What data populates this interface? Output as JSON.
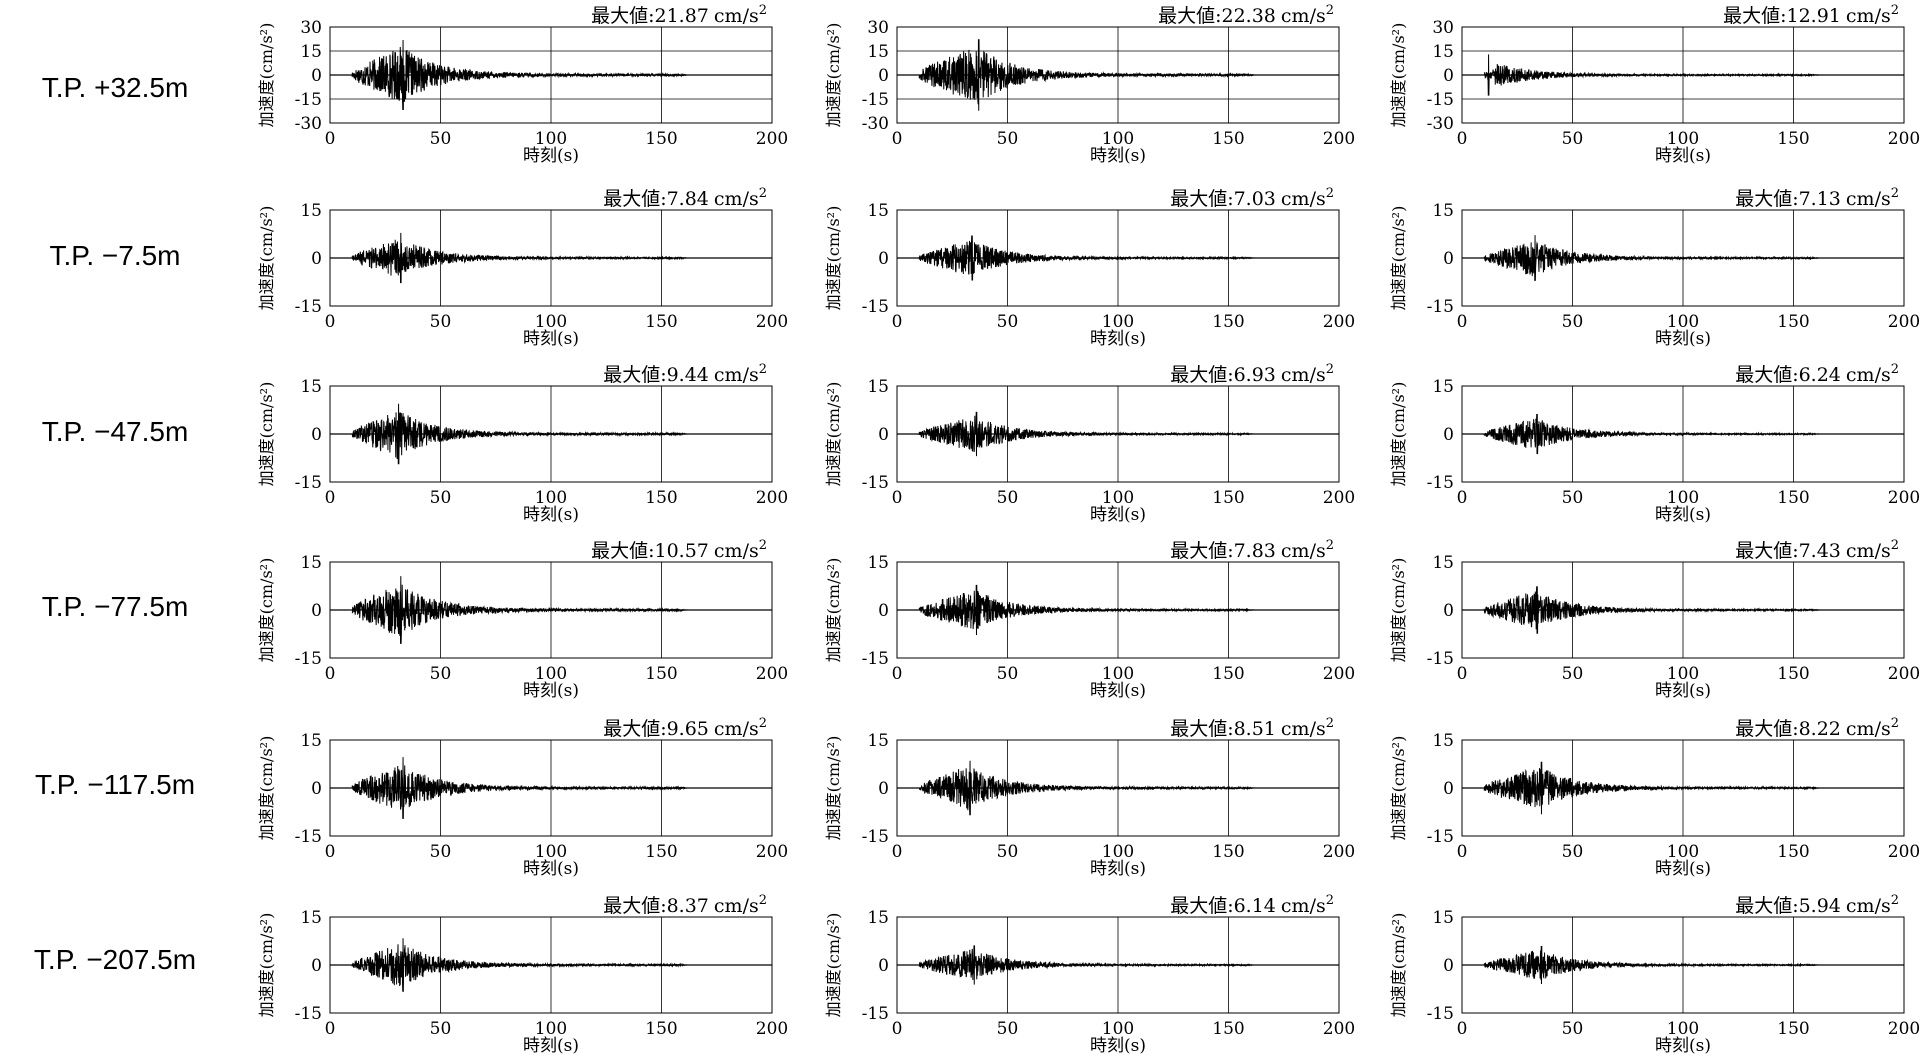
{
  "common": {
    "xlabel": "時刻(s)",
    "ylabel": "加速度(cm/s²)",
    "peak_prefix": "最大値:",
    "peak_unit": "cm/s",
    "peak_exp": "2",
    "x_ticks": [
      "0",
      "50",
      "100",
      "150",
      "200"
    ]
  },
  "rows": [
    {
      "label": "T.P. +32.5m"
    },
    {
      "label": "T.P. −7.5m"
    },
    {
      "label": "T.P. −47.5m"
    },
    {
      "label": "T.P. −77.5m"
    },
    {
      "label": "T.P. −117.5m"
    },
    {
      "label": "T.P. −207.5m"
    }
  ],
  "chart_data": [
    {
      "type": "line",
      "row": 0,
      "col": 0,
      "xlim": [
        0,
        200
      ],
      "ylim": [
        -30,
        30
      ],
      "yticks": [
        "30",
        "15",
        "0",
        "-15",
        "-30"
      ],
      "grid": "major x and y",
      "peak": "21.87",
      "signal": {
        "start": 10,
        "end": 162,
        "peak_time": 33
      }
    },
    {
      "type": "line",
      "row": 0,
      "col": 1,
      "xlim": [
        0,
        200
      ],
      "ylim": [
        -30,
        30
      ],
      "yticks": [
        "30",
        "15",
        "0",
        "-15",
        "-30"
      ],
      "grid": "major x and y",
      "peak": "22.38",
      "signal": {
        "start": 10,
        "end": 162,
        "peak_time": 37
      }
    },
    {
      "type": "line",
      "row": 0,
      "col": 2,
      "xlim": [
        0,
        200
      ],
      "ylim": [
        -30,
        30
      ],
      "yticks": [
        "30",
        "15",
        "0",
        "-15",
        "-30"
      ],
      "grid": "major x and y",
      "peak": "12.91",
      "signal": {
        "start": 10,
        "end": 162,
        "peak_time": 12
      }
    },
    {
      "type": "line",
      "row": 1,
      "col": 0,
      "xlim": [
        0,
        200
      ],
      "ylim": [
        -15,
        15
      ],
      "yticks": [
        "15",
        "0",
        "-15"
      ],
      "grid": "major x and zero line",
      "peak": "7.84",
      "signal": {
        "start": 10,
        "end": 162,
        "peak_time": 32
      }
    },
    {
      "type": "line",
      "row": 1,
      "col": 1,
      "xlim": [
        0,
        200
      ],
      "ylim": [
        -15,
        15
      ],
      "yticks": [
        "15",
        "0",
        "-15"
      ],
      "grid": "major x and zero line",
      "peak": "7.03",
      "signal": {
        "start": 10,
        "end": 162,
        "peak_time": 34
      }
    },
    {
      "type": "line",
      "row": 1,
      "col": 2,
      "xlim": [
        0,
        200
      ],
      "ylim": [
        -15,
        15
      ],
      "yticks": [
        "15",
        "0",
        "-15"
      ],
      "grid": "major x and zero line",
      "peak": "7.13",
      "signal": {
        "start": 10,
        "end": 162,
        "peak_time": 33
      }
    },
    {
      "type": "line",
      "row": 2,
      "col": 0,
      "xlim": [
        0,
        200
      ],
      "ylim": [
        -15,
        15
      ],
      "yticks": [
        "15",
        "0",
        "-15"
      ],
      "grid": "major x and zero line",
      "peak": "9.44",
      "signal": {
        "start": 10,
        "end": 162,
        "peak_time": 31
      }
    },
    {
      "type": "line",
      "row": 2,
      "col": 1,
      "xlim": [
        0,
        200
      ],
      "ylim": [
        -15,
        15
      ],
      "yticks": [
        "15",
        "0",
        "-15"
      ],
      "grid": "major x and zero line",
      "peak": "6.93",
      "signal": {
        "start": 10,
        "end": 162,
        "peak_time": 36
      }
    },
    {
      "type": "line",
      "row": 2,
      "col": 2,
      "xlim": [
        0,
        200
      ],
      "ylim": [
        -15,
        15
      ],
      "yticks": [
        "15",
        "0",
        "-15"
      ],
      "grid": "major x and zero line",
      "peak": "6.24",
      "signal": {
        "start": 10,
        "end": 162,
        "peak_time": 34
      }
    },
    {
      "type": "line",
      "row": 3,
      "col": 0,
      "xlim": [
        0,
        200
      ],
      "ylim": [
        -15,
        15
      ],
      "yticks": [
        "15",
        "0",
        "-15"
      ],
      "grid": "major x and zero line",
      "peak": "10.57",
      "signal": {
        "start": 10,
        "end": 162,
        "peak_time": 32
      }
    },
    {
      "type": "line",
      "row": 3,
      "col": 1,
      "xlim": [
        0,
        200
      ],
      "ylim": [
        -15,
        15
      ],
      "yticks": [
        "15",
        "0",
        "-15"
      ],
      "grid": "major x and zero line",
      "peak": "7.83",
      "signal": {
        "start": 10,
        "end": 162,
        "peak_time": 36
      }
    },
    {
      "type": "line",
      "row": 3,
      "col": 2,
      "xlim": [
        0,
        200
      ],
      "ylim": [
        -15,
        15
      ],
      "yticks": [
        "15",
        "0",
        "-15"
      ],
      "grid": "major x and zero line",
      "peak": "7.43",
      "signal": {
        "start": 10,
        "end": 162,
        "peak_time": 34
      }
    },
    {
      "type": "line",
      "row": 4,
      "col": 0,
      "xlim": [
        0,
        200
      ],
      "ylim": [
        -15,
        15
      ],
      "yticks": [
        "15",
        "0",
        "-15"
      ],
      "grid": "major x and zero line",
      "peak": "9.65",
      "signal": {
        "start": 10,
        "end": 162,
        "peak_time": 33
      }
    },
    {
      "type": "line",
      "row": 4,
      "col": 1,
      "xlim": [
        0,
        200
      ],
      "ylim": [
        -15,
        15
      ],
      "yticks": [
        "15",
        "0",
        "-15"
      ],
      "grid": "major x and zero line",
      "peak": "8.51",
      "signal": {
        "start": 10,
        "end": 162,
        "peak_time": 33
      }
    },
    {
      "type": "line",
      "row": 4,
      "col": 2,
      "xlim": [
        0,
        200
      ],
      "ylim": [
        -15,
        15
      ],
      "yticks": [
        "15",
        "0",
        "-15"
      ],
      "grid": "major x and zero line",
      "peak": "8.22",
      "signal": {
        "start": 10,
        "end": 162,
        "peak_time": 36
      }
    },
    {
      "type": "line",
      "row": 5,
      "col": 0,
      "xlim": [
        0,
        200
      ],
      "ylim": [
        -15,
        15
      ],
      "yticks": [
        "15",
        "0",
        "-15"
      ],
      "grid": "major x and zero line",
      "peak": "8.37",
      "signal": {
        "start": 10,
        "end": 162,
        "peak_time": 33
      }
    },
    {
      "type": "line",
      "row": 5,
      "col": 1,
      "xlim": [
        0,
        200
      ],
      "ylim": [
        -15,
        15
      ],
      "yticks": [
        "15",
        "0",
        "-15"
      ],
      "grid": "major x and zero line",
      "peak": "6.14",
      "signal": {
        "start": 10,
        "end": 162,
        "peak_time": 35
      }
    },
    {
      "type": "line",
      "row": 5,
      "col": 2,
      "xlim": [
        0,
        200
      ],
      "ylim": [
        -15,
        15
      ],
      "yticks": [
        "15",
        "0",
        "-15"
      ],
      "grid": "major x and zero line",
      "peak": "5.94",
      "signal": {
        "start": 10,
        "end": 162,
        "peak_time": 36
      }
    }
  ]
}
